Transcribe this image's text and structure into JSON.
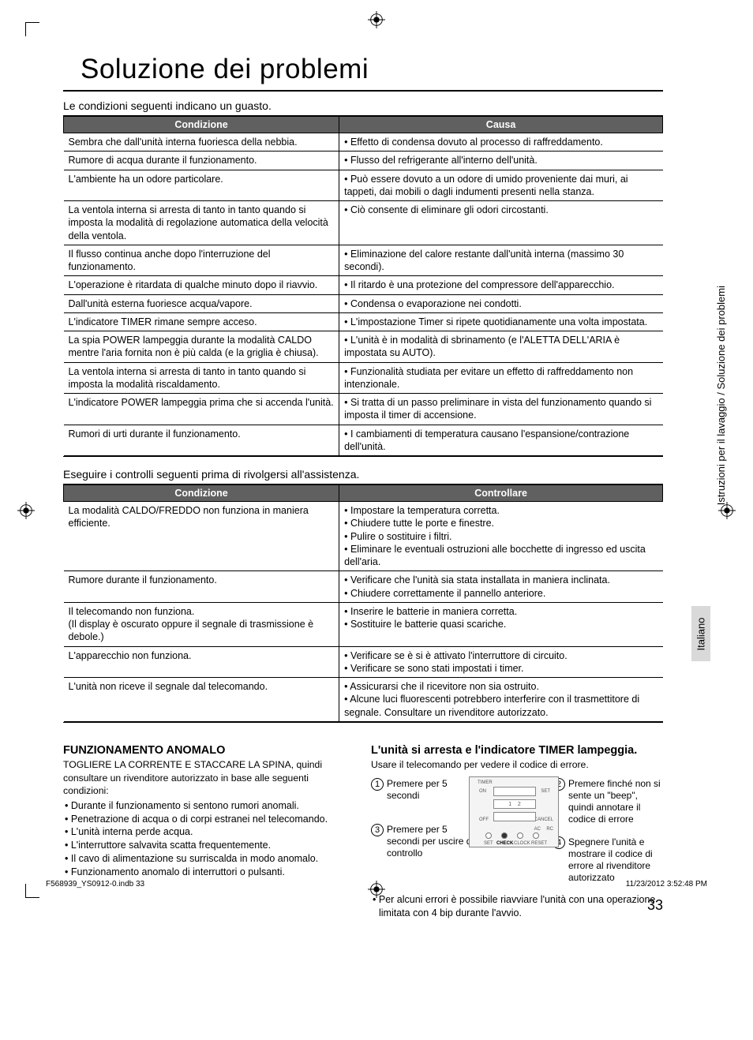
{
  "page_number": "33",
  "title": "Soluzione dei problemi",
  "intro1": "Le condizioni seguenti indicano un guasto.",
  "intro2": "Eseguire i controlli seguenti prima di rivolgersi all'assistenza.",
  "table1": {
    "headers": [
      "Condizione",
      "Causa"
    ],
    "rows": [
      [
        "Sembra che dall'unità interna fuoriesca della nebbia.",
        "• Effetto di condensa dovuto al processo di raffreddamento."
      ],
      [
        "Rumore di acqua durante il funzionamento.",
        "• Flusso del refrigerante all'interno dell'unità."
      ],
      [
        "L'ambiente ha un odore particolare.",
        "• Può essere dovuto a un odore di umido proveniente dai muri, ai tappeti, dai mobili o dagli indumenti presenti nella stanza."
      ],
      [
        "La ventola interna si arresta di tanto in tanto quando si imposta la modalità di regolazione automatica della velocità della ventola.",
        "• Ciò consente di eliminare gli odori circostanti."
      ],
      [
        "Il flusso continua anche dopo l'interruzione del funzionamento.",
        "• Eliminazione del calore restante dall'unità interna (massimo 30 secondi)."
      ],
      [
        "L'operazione è ritardata di qualche minuto dopo il riavvio.",
        "• Il ritardo è una protezione del compressore dell'apparecchio."
      ],
      [
        "Dall'unità esterna fuoriesce acqua/vapore.",
        "• Condensa o evaporazione nei condotti."
      ],
      [
        "L'indicatore TIMER rimane sempre acceso.",
        "• L'impostazione Timer si ripete quotidianamente una volta impostata."
      ],
      [
        "La spia POWER lampeggia durante la modalità CALDO mentre l'aria fornita non è più calda (e la griglia è chiusa).",
        "• L'unità è in modalità di sbrinamento (e l'ALETTA DELL'ARIA è impostata su AUTO)."
      ],
      [
        "La ventola interna si arresta di tanto in tanto quando si imposta la modalità riscaldamento.",
        "• Funzionalità studiata per evitare un effetto di raffreddamento non intenzionale."
      ],
      [
        "L'indicatore POWER lampeggia prima che si accenda l'unità.",
        "• Si tratta di un passo preliminare in vista del funzionamento quando si imposta il timer di accensione."
      ],
      [
        "Rumori di urti durante il funzionamento.",
        "• I cambiamenti di temperatura causano l'espansione/contrazione dell'unità."
      ]
    ]
  },
  "table2": {
    "headers": [
      "Condizione",
      "Controllare"
    ],
    "rows": [
      [
        "La modalità CALDO/FREDDO non funziona in maniera efficiente.",
        "• Impostare la temperatura corretta.\n• Chiudere tutte le porte e finestre.\n• Pulire o sostituire i filtri.\n• Eliminare le eventuali ostruzioni alle bocchette di ingresso ed uscita dell'aria."
      ],
      [
        "Rumore durante il funzionamento.",
        "• Verificare che l'unità sia stata installata in maniera inclinata.\n• Chiudere correttamente il pannello anteriore."
      ],
      [
        "Il telecomando non funziona.\n(Il display è oscurato oppure il segnale di trasmissione è debole.)",
        "• Inserire le batterie in maniera corretta.\n• Sostituire le batterie quasi scariche."
      ],
      [
        "L'apparecchio non funziona.",
        "• Verificare se è si è attivato l'interruttore di circuito.\n• Verificare se sono stati impostati i timer."
      ],
      [
        "L'unità non riceve il segnale dal telecomando.",
        "• Assicurarsi che il ricevitore non sia ostruito.\n• Alcune luci fluorescenti potrebbero interferire con il trasmettitore di segnale. Consultare un rivenditore autorizzato."
      ]
    ]
  },
  "left": {
    "head": "FUNZIONAMENTO ANOMALO",
    "sub": "TOGLIERE LA CORRENTE E STACCARE LA SPINA, quindi consultare un rivenditore autorizzato in base alle seguenti condizioni:",
    "items": [
      "Durante il funzionamento si sentono rumori anomali.",
      "Penetrazione di acqua o di corpi estranei nel telecomando.",
      "L'unità interna perde acqua.",
      "L'interruttore salvavita scatta frequentemente.",
      "Il cavo di alimentazione su surriscalda in modo anomalo.",
      "Funzionamento anomalo di interruttori o pulsanti."
    ]
  },
  "right": {
    "head": "L'unità si arresta e l'indicatore TIMER lampeggia.",
    "sub": "Usare il telecomando per vedere il codice di errore.",
    "c1": "Premere per 5 secondi",
    "c2": "Premere finché non si sente un \"beep\", quindi annotare il codice di errore",
    "c3": "Premere per 5 secondi per uscire dal controllo",
    "c4": "Spegnere l'unità e mostrare il codice di errore al rivenditore autorizzato",
    "note": "Per alcuni errori è possibile riavviare l'unità con una operazione limitata con 4 bip durante l'avvio.",
    "remote_labels": {
      "timer": "TIMER",
      "on": "ON",
      "set": "SET",
      "off": "OFF",
      "cancel": "CANCEL",
      "setl": "SET",
      "check": "CHECK",
      "clock": "CLOCK",
      "reset": "RESET",
      "ac": "AC",
      "rc": "RC"
    }
  },
  "side": {
    "section": "Istruzioni per il lavaggio / Soluzione dei problemi",
    "lang": "Italiano"
  },
  "footer": {
    "left": "F568939_YS0912-0.indb   33",
    "right": "11/23/2012   3:52:48 PM"
  }
}
